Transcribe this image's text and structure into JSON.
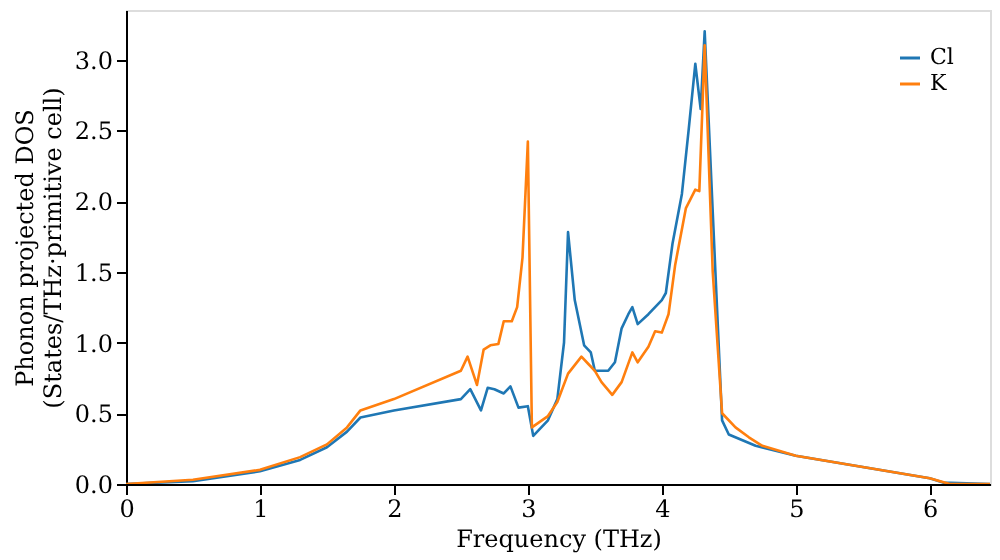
{
  "chart_data": {
    "type": "line",
    "xlabel": "Frequency (THz)",
    "ylabel": "Phonon projected DOS\n(States/THz·primitive cell)",
    "xlim": [
      0,
      6.45
    ],
    "ylim": [
      0,
      3.35
    ],
    "xticks": [
      0,
      1,
      2,
      3,
      4,
      5,
      6
    ],
    "yticks": [
      {
        "value": 0,
        "label": "0.0"
      },
      0.5,
      {
        "value": 1,
        "label": "1.0"
      },
      1.5,
      {
        "value": 2,
        "label": "2.0"
      },
      2.5,
      {
        "value": 3,
        "label": "3.0"
      }
    ],
    "legend": "top right",
    "grid": false,
    "series": [
      {
        "name": "Cl",
        "color": "#1f77b4",
        "x": [
          0,
          0.5,
          1.0,
          1.3,
          1.5,
          1.65,
          1.75,
          2.0,
          2.5,
          2.57,
          2.65,
          2.7,
          2.75,
          2.82,
          2.87,
          2.93,
          3.0,
          3.04,
          3.15,
          3.22,
          3.27,
          3.3,
          3.35,
          3.42,
          3.47,
          3.5,
          3.6,
          3.65,
          3.7,
          3.75,
          3.78,
          3.82,
          3.9,
          4.0,
          4.03,
          4.08,
          4.15,
          4.2,
          4.25,
          4.29,
          4.32,
          4.4,
          4.45,
          4.5,
          4.7,
          5.0,
          5.5,
          6.0,
          6.1,
          6.45
        ],
        "values": [
          0,
          0.02,
          0.09,
          0.17,
          0.26,
          0.37,
          0.47,
          0.52,
          0.6,
          0.67,
          0.52,
          0.68,
          0.67,
          0.64,
          0.69,
          0.54,
          0.55,
          0.34,
          0.45,
          0.6,
          1.0,
          1.78,
          1.3,
          0.98,
          0.93,
          0.8,
          0.8,
          0.86,
          1.1,
          1.2,
          1.25,
          1.13,
          1.2,
          1.3,
          1.35,
          1.7,
          2.05,
          2.5,
          2.97,
          2.65,
          3.2,
          1.5,
          0.45,
          0.35,
          0.27,
          0.2,
          0.12,
          0.04,
          0.01,
          0.0
        ]
      },
      {
        "name": "K",
        "color": "#ff7f0e",
        "x": [
          0,
          0.5,
          1.0,
          1.3,
          1.5,
          1.65,
          1.75,
          2.0,
          2.5,
          2.55,
          2.62,
          2.67,
          2.72,
          2.78,
          2.82,
          2.88,
          2.92,
          2.96,
          3.0,
          3.03,
          3.15,
          3.22,
          3.3,
          3.4,
          3.45,
          3.5,
          3.55,
          3.63,
          3.7,
          3.78,
          3.82,
          3.9,
          3.95,
          4.0,
          4.05,
          4.1,
          4.18,
          4.25,
          4.28,
          4.32,
          4.38,
          4.45,
          4.55,
          4.65,
          4.75,
          5.0,
          5.5,
          6.0,
          6.15,
          6.45
        ],
        "values": [
          0,
          0.03,
          0.1,
          0.19,
          0.28,
          0.4,
          0.52,
          0.6,
          0.8,
          0.9,
          0.7,
          0.95,
          0.98,
          0.99,
          1.15,
          1.15,
          1.25,
          1.6,
          2.42,
          0.4,
          0.48,
          0.58,
          0.78,
          0.9,
          0.85,
          0.8,
          0.72,
          0.63,
          0.72,
          0.93,
          0.86,
          0.97,
          1.08,
          1.07,
          1.2,
          1.55,
          1.95,
          2.08,
          2.07,
          3.1,
          1.5,
          0.5,
          0.4,
          0.33,
          0.27,
          0.2,
          0.12,
          0.04,
          0.0,
          0.0
        ]
      }
    ]
  }
}
